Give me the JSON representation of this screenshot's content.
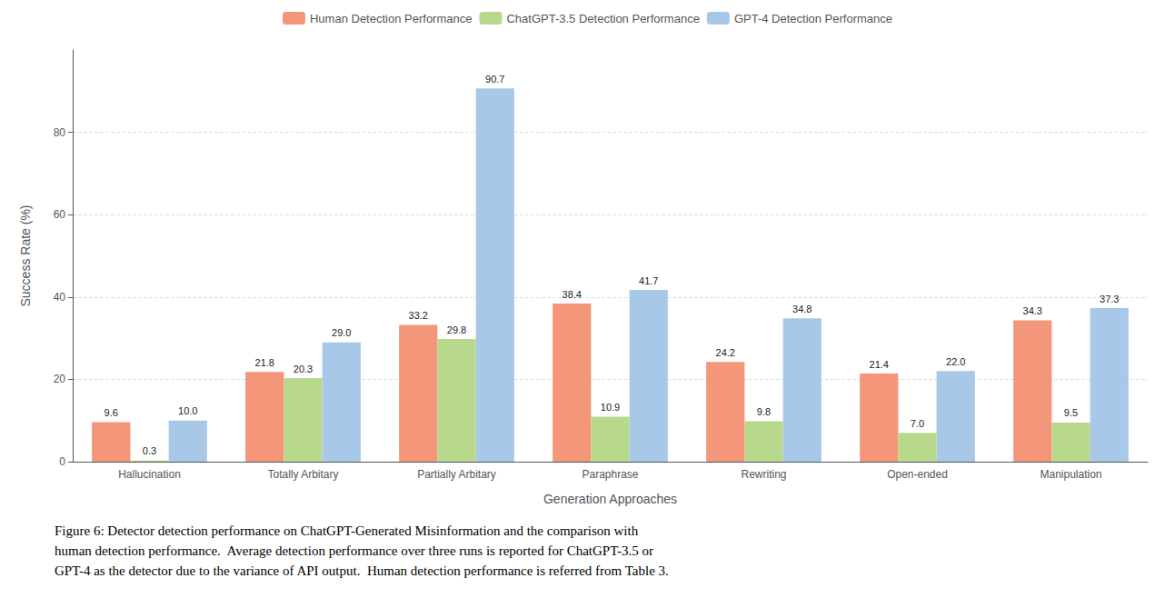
{
  "chart_data": {
    "type": "bar",
    "categories": [
      "Hallucination",
      "Totally Arbitary",
      "Partially Arbitary",
      "Paraphrase",
      "Rewriting",
      "Open-ended",
      "Manipulation"
    ],
    "series": [
      {
        "name": "Human Detection Performance",
        "color": "#F4967A",
        "values": [
          9.6,
          21.8,
          33.2,
          38.4,
          24.2,
          21.4,
          34.3
        ],
        "value_labels": [
          "9.6",
          "21.8",
          "33.2",
          "38.4",
          "24.2",
          "21.4",
          "34.3"
        ]
      },
      {
        "name": "ChatGPT-3.5 Detection Performance",
        "color": "#B8D88B",
        "values": [
          0.3,
          20.3,
          29.8,
          10.9,
          9.8,
          7.0,
          9.5
        ],
        "value_labels": [
          "0.3",
          "20.3",
          "29.8",
          "10.9",
          "9.8",
          "7.0",
          "9.5"
        ]
      },
      {
        "name": "GPT-4 Detection Performance",
        "color": "#A8C8E8",
        "values": [
          10.0,
          29.0,
          90.7,
          41.7,
          34.8,
          22.0,
          37.3
        ],
        "value_labels": [
          "10.0",
          "29.0",
          "90.7",
          "41.7",
          "34.8",
          "22.0",
          "37.3"
        ]
      }
    ],
    "xlabel": "Generation Approaches",
    "ylabel": "Success Rate (%)",
    "ylim": [
      0,
      100
    ],
    "yticks": [
      0,
      20,
      40,
      60,
      80
    ],
    "grid": true,
    "legend": "top",
    "data_labels": true,
    "annotations": [
      "Figure 6: Detector detection performance on ChatGPT-Generated Misinformation and the comparison with",
      "human detection performance.  Average detection performance over three runs is reported for ChatGPT-3.5 or",
      "GPT-4 as the detector due to the variance of API output.  Human detection performance is referred from Table 3."
    ]
  }
}
